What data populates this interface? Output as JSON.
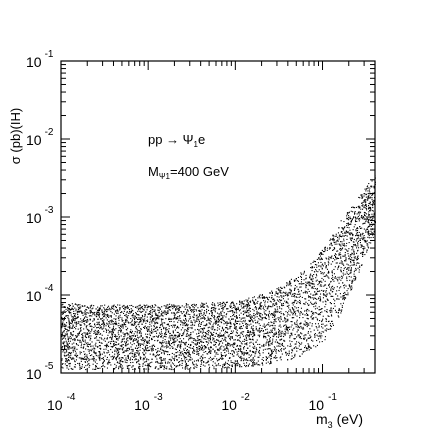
{
  "chart_data": {
    "type": "scatter",
    "title": "",
    "xlabel": "m",
    "xlabel_sub": "3",
    "xlabel_unit": " (eV)",
    "ylabel": "σ (pb)(IH)",
    "x_scale": "log",
    "y_scale": "log",
    "xlim": [
      0.0001,
      0.4
    ],
    "ylim": [
      1e-05,
      0.1
    ],
    "grid": false,
    "x_ticks": [
      {
        "base": "10",
        "exp": "-4"
      },
      {
        "base": "10",
        "exp": "-3"
      },
      {
        "base": "10",
        "exp": "-2"
      },
      {
        "base": "10",
        "exp": "-1"
      }
    ],
    "y_ticks": [
      {
        "base": "10",
        "exp": "-1"
      },
      {
        "base": "10",
        "exp": "-2"
      },
      {
        "base": "10",
        "exp": "-3"
      },
      {
        "base": "10",
        "exp": "-4"
      },
      {
        "base": "10",
        "exp": "-5"
      }
    ],
    "annotations": [
      {
        "text": "pp → Ψ",
        "sub": "1",
        "tail": "e"
      },
      {
        "text": "M",
        "sub": "Ψ1",
        "tail": "=400 GeV"
      }
    ],
    "series": [
      {
        "color": "#000000",
        "band_x_log10": [
          -4.0,
          -3.5,
          -3.0,
          -2.5,
          -2.0,
          -1.6,
          -1.3,
          -1.1,
          -1.0,
          -0.9,
          -0.8,
          -0.7,
          -0.6,
          -0.5,
          -0.4
        ],
        "band_ylow_log10": [
          -4.95,
          -4.95,
          -4.95,
          -4.95,
          -4.93,
          -4.88,
          -4.8,
          -4.7,
          -4.6,
          -4.45,
          -4.25,
          -4.0,
          -3.75,
          -3.45,
          -3.2
        ],
        "band_yhigh_log10": [
          -4.1,
          -4.12,
          -4.12,
          -4.1,
          -4.08,
          -3.95,
          -3.75,
          -3.55,
          -3.4,
          -3.25,
          -3.05,
          -2.9,
          -2.75,
          -2.6,
          -2.45
        ]
      }
    ]
  }
}
